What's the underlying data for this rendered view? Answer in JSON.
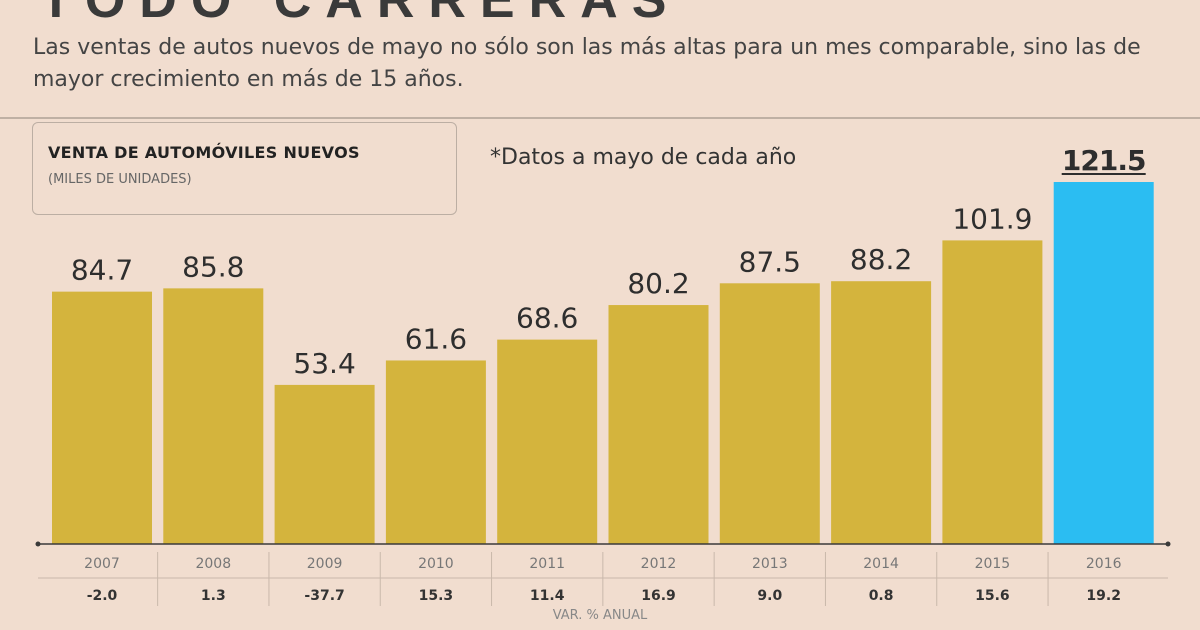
{
  "header": {
    "title_fragment": "TODO CARRERAS",
    "subtitle": "Las ventas de autos nuevos de mayo no sólo son las más altas para un mes comparable, sino las de mayor crecimiento en más de 15 años."
  },
  "colors": {
    "bar": "#d4b43d",
    "highlight": "#2bbdf2",
    "background": "#f1ddcf"
  },
  "chart_data": {
    "type": "bar",
    "title": "VENTA DE AUTOMÓVILES NUEVOS",
    "units": "(MILES DE UNIDADES)",
    "note": "*Datos a mayo de cada año",
    "categories": [
      "2007",
      "2008",
      "2009",
      "2010",
      "2011",
      "2012",
      "2013",
      "2014",
      "2015",
      "2016"
    ],
    "values": [
      84.7,
      85.8,
      53.4,
      61.6,
      68.6,
      80.2,
      87.5,
      88.2,
      101.9,
      121.5
    ],
    "value_labels": [
      "84.7",
      "85.8",
      "53.4",
      "61.6",
      "68.6",
      "80.2",
      "87.5",
      "88.2",
      "101.9",
      "121.5"
    ],
    "highlight_index": 9,
    "changes": [
      "-2.0",
      "1.3",
      "-37.7",
      "15.3",
      "11.4",
      "16.9",
      "9.0",
      "0.8",
      "15.6",
      "19.2"
    ],
    "changes_label": "VAR. % ANUAL",
    "ylim": [
      0,
      121.5
    ],
    "xlabel": "",
    "ylabel": ""
  }
}
